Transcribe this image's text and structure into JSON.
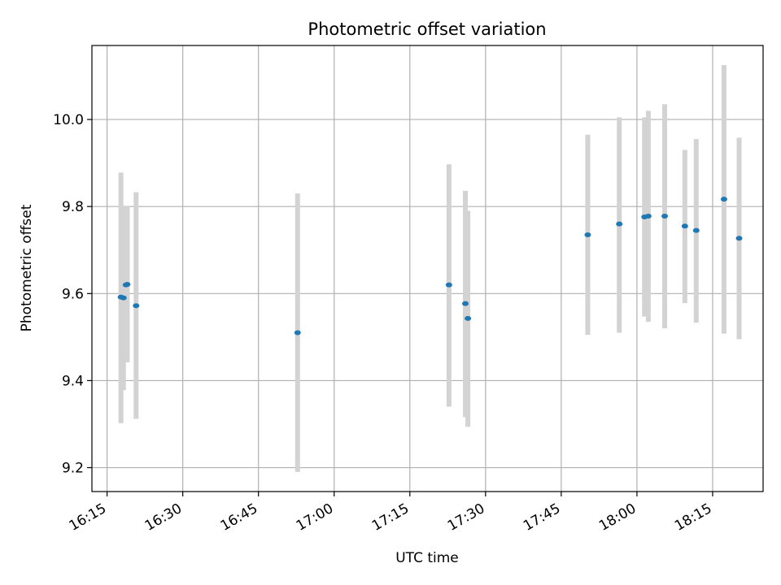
{
  "chart_data": {
    "type": "scatter",
    "title": "Photometric offset variation",
    "xlabel": "UTC time",
    "ylabel": "Photometric offset",
    "x_unit": "UTC time (HH:MM)",
    "xlim": [
      "16:12:00",
      "18:25:00"
    ],
    "ylim": [
      9.145,
      10.17
    ],
    "xticks": [
      "16:15",
      "16:30",
      "16:45",
      "17:00",
      "17:15",
      "17:30",
      "17:45",
      "18:00",
      "18:15"
    ],
    "yticks": [
      9.2,
      9.4,
      9.6,
      9.8,
      10.0
    ],
    "ytick_labels": [
      "9.2",
      "9.4",
      "9.6",
      "9.8",
      "10.0"
    ],
    "grid": true,
    "marker_color": "#1f77b4",
    "errorbar_color": "#d3d3d3",
    "points": [
      {
        "x": "16:17:45",
        "y": 9.592,
        "err_low": 9.302,
        "err_high": 9.878
      },
      {
        "x": "16:18:15",
        "y": 9.59,
        "err_low": 9.378,
        "err_high": 9.802
      },
      {
        "x": "16:18:45",
        "y": 9.62,
        "err_low": 9.442,
        "err_high": 9.8
      },
      {
        "x": "16:19:00",
        "y": 9.621,
        "err_low": 9.442,
        "err_high": 9.8
      },
      {
        "x": "16:20:45",
        "y": 9.572,
        "err_low": 9.312,
        "err_high": 9.833
      },
      {
        "x": "16:52:45",
        "y": 9.51,
        "err_low": 9.19,
        "err_high": 9.83
      },
      {
        "x": "17:22:45",
        "y": 9.62,
        "err_low": 9.34,
        "err_high": 9.897
      },
      {
        "x": "17:26:00",
        "y": 9.577,
        "err_low": 9.316,
        "err_high": 9.836
      },
      {
        "x": "17:26:30",
        "y": 9.543,
        "err_low": 9.294,
        "err_high": 9.79
      },
      {
        "x": "17:50:15",
        "y": 9.735,
        "err_low": 9.505,
        "err_high": 9.965
      },
      {
        "x": "17:56:30",
        "y": 9.76,
        "err_low": 9.51,
        "err_high": 10.005
      },
      {
        "x": "18:01:30",
        "y": 9.776,
        "err_low": 9.547,
        "err_high": 10.005
      },
      {
        "x": "18:02:15",
        "y": 9.778,
        "err_low": 9.535,
        "err_high": 10.02
      },
      {
        "x": "18:05:30",
        "y": 9.778,
        "err_low": 9.52,
        "err_high": 10.035
      },
      {
        "x": "18:09:30",
        "y": 9.755,
        "err_low": 9.578,
        "err_high": 9.93
      },
      {
        "x": "18:11:45",
        "y": 9.745,
        "err_low": 9.533,
        "err_high": 9.955
      },
      {
        "x": "18:17:15",
        "y": 9.817,
        "err_low": 9.508,
        "err_high": 10.125
      },
      {
        "x": "18:20:15",
        "y": 9.727,
        "err_low": 9.495,
        "err_high": 9.958
      }
    ]
  }
}
